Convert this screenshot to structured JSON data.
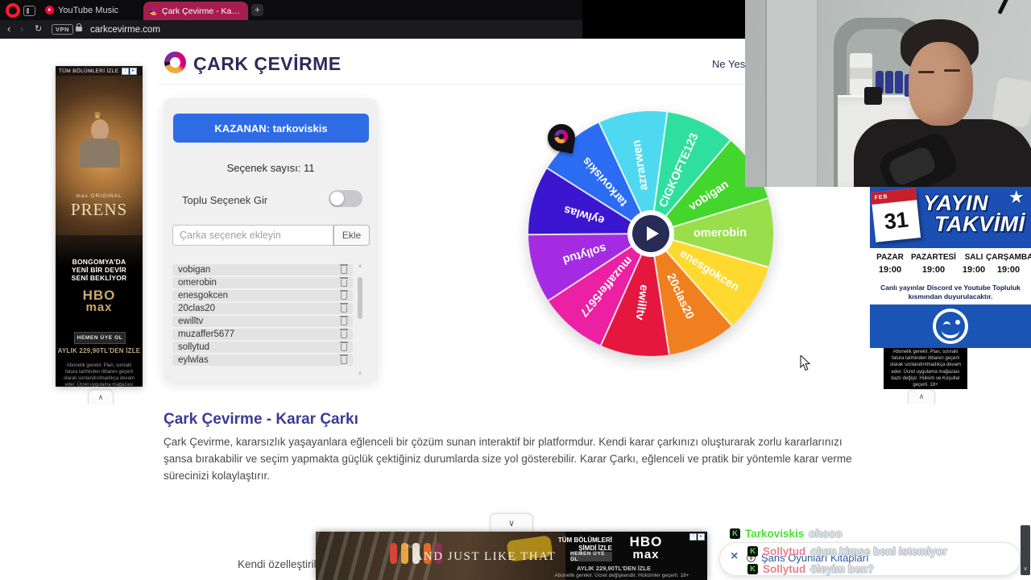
{
  "browser": {
    "tabs": [
      {
        "label": "YouTube Music"
      },
      {
        "label": "Çark Çevirme - Karar Çark"
      }
    ],
    "new_tab": "+",
    "back": "‹",
    "forward": "›",
    "reload": "↻",
    "vpn_badge": "VPN",
    "address": "carkcevirme.com",
    "active_tab_color": "#a61e4d"
  },
  "page": {
    "brand": "ÇARK ÇEVİRME",
    "nav_link": "Ne Yesem",
    "winner_button": "KAZANAN: tarkoviskis",
    "option_count": "Seçenek sayısı: 11",
    "bulk_toggle_label": "Toplu Seçenek Gir",
    "input_placeholder": "Çarka seçenek ekleyin",
    "add_button": "Ekle",
    "options": [
      "vobigan",
      "omerobin",
      "enesgokcen",
      "20clas20",
      "ewilltv",
      "muzaffer5677",
      "sollytud",
      "eylwlas"
    ],
    "heading": "Çark Çevirme - Karar Çarkı",
    "description": "Çark Çevirme, kararsızlık yaşayanlara eğlenceli bir çözüm sunan interaktif bir platformdur. Kendi karar çarkınızı oluşturarak zorlu kararlarınızı şansa bırakabilir ve seçim yapmakta güçlük çektiğiniz durumlarda size yol gösterebilir. Karar Çarkı, eğlenceli ve pratik bir yöntemle karar verme sürecinizi kolaylaştırır.",
    "description2_partial": "Kendi özelleştirilmiş",
    "winner_blue": "#2e6ce6",
    "heading_color": "#3c3a96",
    "brand_color": "#2d2a5c"
  },
  "wheel": {
    "start_angle": 335,
    "slices": [
      {
        "label": "azrarwen",
        "color": "#4fd9f1"
      },
      {
        "label": "CIGKOFTE123",
        "color": "#2edfa0"
      },
      {
        "label": "vobigan",
        "color": "#44d62c"
      },
      {
        "label": "omerobin",
        "color": "#9ade4b"
      },
      {
        "label": "enesgokcen",
        "color": "#ffd930"
      },
      {
        "label": "20clas20",
        "color": "#f0801f"
      },
      {
        "label": "ewilltv",
        "color": "#e5173f"
      },
      {
        "label": "muzaffer5677",
        "color": "#eb20a2"
      },
      {
        "label": "sollytud",
        "color": "#a42be2"
      },
      {
        "label": "eylwlas",
        "color": "#3a16d0"
      },
      {
        "label": "tarkoviskis",
        "color": "#2b6cf3"
      }
    ]
  },
  "left_ad": {
    "top_label": "TÜM BÖLÜMLERİ İZLE",
    "brand_small": "max ORIGINAL",
    "title": "PRENS",
    "lines": [
      "BONGOMYA'DA",
      "YENİ BİR DEVİR",
      "SENİ BEKLİYOR"
    ],
    "logo_top": "HBO",
    "logo_bottom": "max",
    "cta": "HEMEN ÜYE OL",
    "price": "AYLIK 229,90TL'DEN İZLE",
    "fineprint": "Abonelik gerekir. Plan, sonraki fatura tarihinden itibaren geçerli olarak sonlandırılmadıkça devam eder. Ücret uygulama mağazası bazlı değişir. Hüküm ve Koşullar geçerli. 18+"
  },
  "bottom_ad": {
    "brand_small": "max",
    "title": "AND JUST LIKE THAT",
    "watch_label": "TÜM BÖLÜMLERİ ŞİMDİ İZLE",
    "logo_top": "HBO",
    "logo_bottom": "max",
    "cta": "HEMEN ÜYE OL",
    "price": "AYLIK 229,90TL'DEN İZLE",
    "fineprint": "Abonelik gerekir. Ücret değişkendir. Hükümler geçerli. 18+"
  },
  "schedule": {
    "title_line1": "YAYIN",
    "title_line2": "TAKVİMİ",
    "calendar_month": "FEB",
    "calendar_day": "31",
    "days": [
      {
        "name": "PAZAR",
        "time": "19:00"
      },
      {
        "name": "PAZARTESİ",
        "time": "19:00"
      },
      {
        "name": "SALI",
        "time": "19:00"
      },
      {
        "name": "ÇARŞAMBA",
        "time": "19:00"
      }
    ],
    "note": "Canlı yayınlar Discord ve Youtube Topluluk kısmından duyurulacaktır.",
    "fineprint": "Abonelik gerekir. Plan, sonraki fatura tarihinden itibaren geçerli olarak sonlandırılmadıkça devam eder. Ücret uygulama mağazası bazlı değişir. Hüküm ve Koşullar geçerli. 18+",
    "blue": "#1c4fb3"
  },
  "chat": {
    "badge": "K",
    "messages": [
      {
        "user": "Tarkoviskis",
        "color": "#4be234",
        "text": "ohooo"
      },
      {
        "user": "Sollytud",
        "color": "#e8808f",
        "text": "olum kimse beni istemiyor"
      },
      {
        "user": "Sollytud",
        "color": "#e8808f",
        "text": "öleyim ben?"
      }
    ],
    "notification": {
      "close": "×",
      "plus": "+",
      "label": "Şans Oyunları Kitapları"
    }
  },
  "icons": {
    "chevron_up": "∧",
    "chevron_down": "∨",
    "star": "★",
    "crown": "♛",
    "info": "i",
    "adchoices": "▸"
  }
}
